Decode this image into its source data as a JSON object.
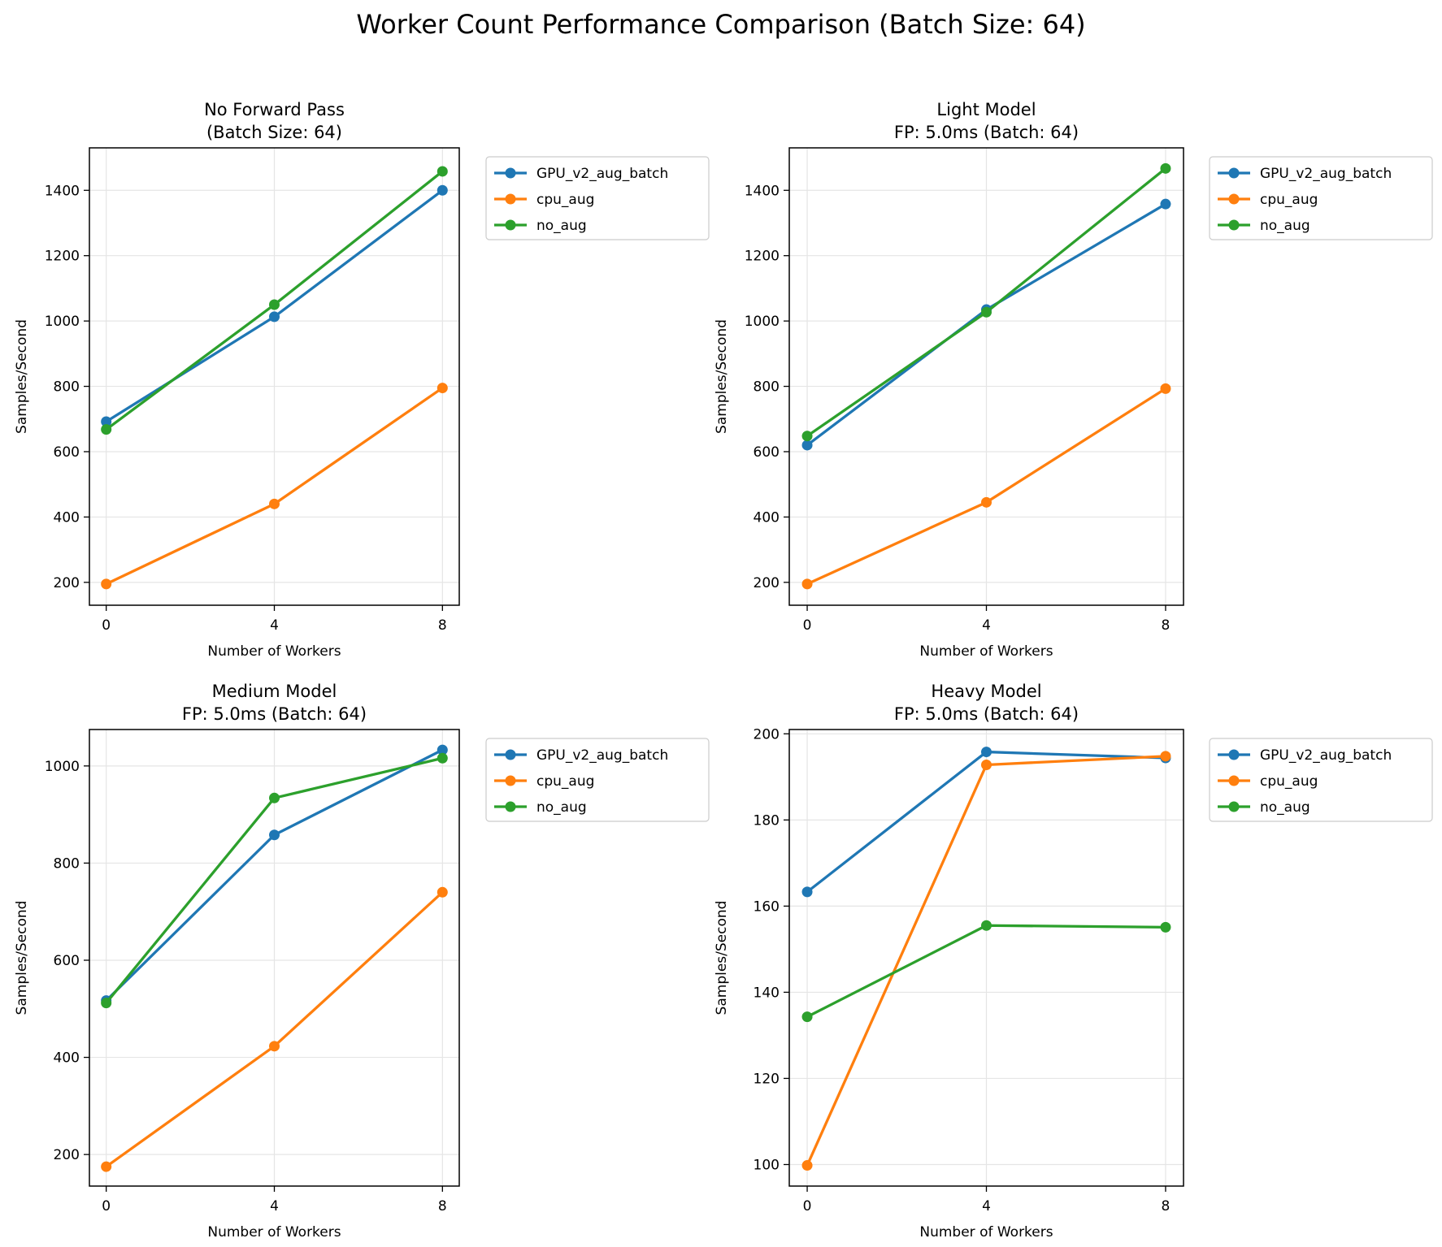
{
  "suptitle": "Worker Count Performance Comparison (Batch Size: 64)",
  "colors": {
    "GPU_v2_aug_batch": "#1f77b4",
    "cpu_aug": "#ff7f0e",
    "no_aug": "#2ca02c",
    "grid": "#e5e5e5",
    "axis": "#000000"
  },
  "chart_data": [
    {
      "type": "line",
      "title": [
        "No Forward Pass",
        "(Batch Size: 64)"
      ],
      "xlabel": "Number of Workers",
      "ylabel": "Samples/Second",
      "x": [
        0,
        4,
        8
      ],
      "xticks": [
        0,
        4,
        8
      ],
      "xlim": [
        -0.4,
        8.4
      ],
      "yticks": [
        200,
        400,
        600,
        800,
        1000,
        1200,
        1400
      ],
      "ylim": [
        130,
        1530
      ],
      "grid": true,
      "legend": "outside-upper-right",
      "series": [
        {
          "name": "GPU_v2_aug_batch",
          "values": [
            692,
            1013,
            1400
          ]
        },
        {
          "name": "cpu_aug",
          "values": [
            195,
            440,
            795
          ]
        },
        {
          "name": "no_aug",
          "values": [
            668,
            1050,
            1458
          ]
        }
      ]
    },
    {
      "type": "line",
      "title": [
        "Light Model",
        "FP: 5.0ms (Batch: 64)"
      ],
      "xlabel": "Number of Workers",
      "ylabel": "Samples/Second",
      "x": [
        0,
        4,
        8
      ],
      "xticks": [
        0,
        4,
        8
      ],
      "xlim": [
        -0.4,
        8.4
      ],
      "yticks": [
        200,
        400,
        600,
        800,
        1000,
        1200,
        1400
      ],
      "ylim": [
        130,
        1530
      ],
      "grid": true,
      "legend": "outside-upper-right",
      "series": [
        {
          "name": "GPU_v2_aug_batch",
          "values": [
            620,
            1035,
            1358
          ]
        },
        {
          "name": "cpu_aug",
          "values": [
            195,
            445,
            793
          ]
        },
        {
          "name": "no_aug",
          "values": [
            648,
            1027,
            1467
          ]
        }
      ]
    },
    {
      "type": "line",
      "title": [
        "Medium Model",
        "FP: 5.0ms (Batch: 64)"
      ],
      "xlabel": "Number of Workers",
      "ylabel": "Samples/Second",
      "x": [
        0,
        4,
        8
      ],
      "xticks": [
        0,
        4,
        8
      ],
      "xlim": [
        -0.4,
        8.4
      ],
      "yticks": [
        200,
        400,
        600,
        800,
        1000
      ],
      "ylim": [
        135,
        1075
      ],
      "grid": true,
      "legend": "outside-upper-right",
      "series": [
        {
          "name": "GPU_v2_aug_batch",
          "values": [
            517,
            858,
            1033
          ]
        },
        {
          "name": "cpu_aug",
          "values": [
            175,
            423,
            740
          ]
        },
        {
          "name": "no_aug",
          "values": [
            512,
            934,
            1016
          ]
        }
      ]
    },
    {
      "type": "line",
      "title": [
        "Heavy Model",
        "FP: 5.0ms (Batch: 64)"
      ],
      "xlabel": "Number of Workers",
      "ylabel": "Samples/Second",
      "x": [
        0,
        4,
        8
      ],
      "xticks": [
        0,
        4,
        8
      ],
      "xlim": [
        -0.4,
        8.4
      ],
      "yticks": [
        100,
        120,
        140,
        160,
        180,
        200
      ],
      "ylim": [
        95,
        201
      ],
      "grid": true,
      "legend": "outside-upper-right",
      "series": [
        {
          "name": "GPU_v2_aug_batch",
          "values": [
            163.3,
            195.8,
            194.4
          ]
        },
        {
          "name": "cpu_aug",
          "values": [
            99.8,
            192.8,
            194.8
          ]
        },
        {
          "name": "no_aug",
          "values": [
            134.3,
            155.5,
            155.1
          ]
        }
      ]
    }
  ]
}
